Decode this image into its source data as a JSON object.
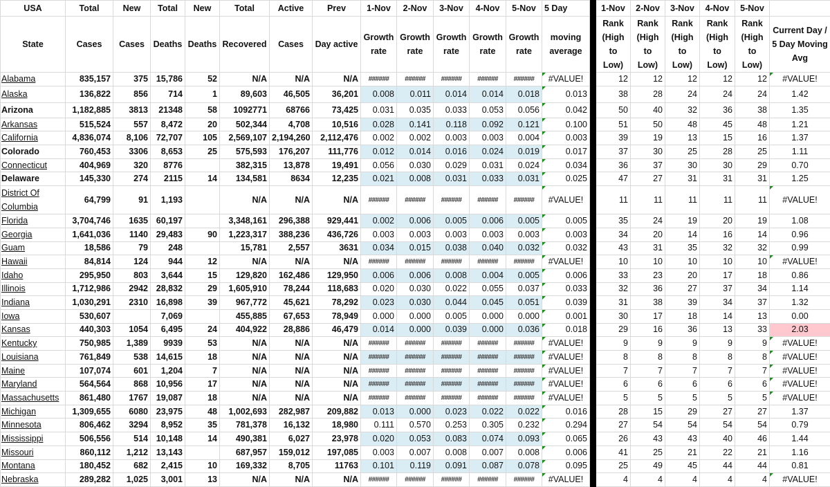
{
  "header_row1": [
    "USA",
    "Total",
    "New",
    "Total",
    "New",
    "Total",
    "Active",
    "Prev",
    "1-Nov",
    "2-Nov",
    "3-Nov",
    "4-Nov",
    "5-Nov",
    "5 Day",
    "",
    "1-Nov",
    "2-Nov",
    "3-Nov",
    "4-Nov",
    "5-Nov",
    ""
  ],
  "header_row2": [
    "State",
    "Cases",
    "Cases",
    "Deaths",
    "Deaths",
    "Recovered",
    "Cases",
    "Day active",
    "Growth rate",
    "Growth rate",
    "Growth rate",
    "Growth rate",
    "Growth rate",
    "moving average",
    "",
    "Rank (High to Low)",
    "Rank (High to Low)",
    "Rank (High to Low)",
    "Rank (High to Low)",
    "Rank (High to Low)",
    "Current Day / 5 Day Moving Avg"
  ],
  "colors": {
    "growth_band": "#dbedf4",
    "highlight": "#ffc7ce",
    "separator": "#000000",
    "error_indicator": "#1e8c1e"
  },
  "rows": [
    {
      "state": "Alabama",
      "link": true,
      "values": [
        "835,157",
        "375",
        "15,786",
        "52",
        "N/A",
        "N/A",
        "N/A"
      ],
      "growth": [
        "######",
        "######",
        "######",
        "######",
        "######"
      ],
      "avg": "#VALUE!",
      "ranks": [
        "12",
        "12",
        "12",
        "12",
        "12"
      ],
      "ratio": "#VALUE!"
    },
    {
      "state": "Alaska",
      "link": true,
      "values": [
        "136,822",
        "856",
        "714",
        "1",
        "89,603",
        "46,505",
        "36,201"
      ],
      "growth": [
        "0.008",
        "0.011",
        "0.014",
        "0.014",
        "0.018"
      ],
      "avg": "0.013",
      "ranks": [
        "38",
        "28",
        "24",
        "24",
        "24"
      ],
      "ratio": "1.42"
    },
    {
      "state": "Arizona",
      "link": false,
      "values": [
        "1,182,885",
        "3813",
        "21348",
        "58",
        "1092771",
        "68766",
        "73,425"
      ],
      "growth": [
        "0.031",
        "0.035",
        "0.033",
        "0.053",
        "0.056"
      ],
      "avg": "0.042",
      "ranks": [
        "50",
        "40",
        "32",
        "36",
        "38"
      ],
      "ratio": "1.35"
    },
    {
      "state": "Arkansas",
      "link": true,
      "values": [
        "515,524",
        "557",
        "8,472",
        "20",
        "502,344",
        "4,708",
        "10,516"
      ],
      "growth": [
        "0.028",
        "0.141",
        "0.118",
        "0.092",
        "0.121"
      ],
      "avg": "0.100",
      "ranks": [
        "51",
        "50",
        "48",
        "45",
        "48"
      ],
      "ratio": "1.21"
    },
    {
      "state": "California",
      "link": true,
      "values": [
        "4,836,074",
        "8,106",
        "72,707",
        "105",
        "2,569,107",
        "2,194,260",
        "2,112,476"
      ],
      "growth": [
        "0.002",
        "0.002",
        "0.003",
        "0.003",
        "0.004"
      ],
      "avg": "0.003",
      "ranks": [
        "39",
        "19",
        "13",
        "15",
        "16"
      ],
      "ratio": "1.37"
    },
    {
      "state": "Colorado",
      "link": false,
      "values": [
        "760,453",
        "3306",
        "8,653",
        "25",
        "575,593",
        "176,207",
        "111,776"
      ],
      "growth": [
        "0.012",
        "0.014",
        "0.016",
        "0.024",
        "0.019"
      ],
      "avg": "0.017",
      "ranks": [
        "37",
        "30",
        "25",
        "28",
        "25"
      ],
      "ratio": "1.11"
    },
    {
      "state": "Connecticut",
      "link": true,
      "values": [
        "404,969",
        "320",
        "8776",
        "",
        "382,315",
        "13,878",
        "19,491"
      ],
      "growth": [
        "0.056",
        "0.030",
        "0.029",
        "0.031",
        "0.024"
      ],
      "avg": "0.034",
      "ranks": [
        "36",
        "37",
        "30",
        "30",
        "29"
      ],
      "ratio": "0.70"
    },
    {
      "state": "Delaware",
      "link": false,
      "values": [
        "145,330",
        "274",
        "2115",
        "14",
        "134,581",
        "8634",
        "12,235"
      ],
      "growth": [
        "0.021",
        "0.008",
        "0.031",
        "0.033",
        "0.031"
      ],
      "avg": "0.025",
      "ranks": [
        "47",
        "27",
        "31",
        "31",
        "31"
      ],
      "ratio": "1.25"
    },
    {
      "state": "District Of Columbia",
      "link": true,
      "values": [
        "64,799",
        "91",
        "1,193",
        "",
        "N/A",
        "N/A",
        "N/A"
      ],
      "growth": [
        "######",
        "######",
        "######",
        "######",
        "######"
      ],
      "avg": "#VALUE!",
      "ranks": [
        "11",
        "11",
        "11",
        "11",
        "11"
      ],
      "ratio": "#VALUE!"
    },
    {
      "state": "Florida",
      "link": true,
      "values": [
        "3,704,746",
        "1635",
        "60,197",
        "",
        "3,348,161",
        "296,388",
        "929,441"
      ],
      "growth": [
        "0.002",
        "0.006",
        "0.005",
        "0.006",
        "0.005"
      ],
      "avg": "0.005",
      "ranks": [
        "35",
        "24",
        "19",
        "20",
        "19"
      ],
      "ratio": "1.08"
    },
    {
      "state": "Georgia",
      "link": true,
      "values": [
        "1,641,036",
        "1140",
        "29,483",
        "90",
        "1,223,317",
        "388,236",
        "436,726"
      ],
      "growth": [
        "0.003",
        "0.003",
        "0.003",
        "0.003",
        "0.003"
      ],
      "avg": "0.003",
      "ranks": [
        "34",
        "20",
        "14",
        "16",
        "14"
      ],
      "ratio": "0.96"
    },
    {
      "state": "Guam",
      "link": true,
      "values": [
        "18,586",
        "79",
        "248",
        "",
        "15,781",
        "2,557",
        "3631"
      ],
      "growth": [
        "0.034",
        "0.015",
        "0.038",
        "0.040",
        "0.032"
      ],
      "avg": "0.032",
      "ranks": [
        "43",
        "31",
        "35",
        "32",
        "32"
      ],
      "ratio": "0.99"
    },
    {
      "state": "Hawaii",
      "link": true,
      "values": [
        "84,814",
        "124",
        "944",
        "12",
        "N/A",
        "N/A",
        "N/A"
      ],
      "growth": [
        "######",
        "######",
        "######",
        "######",
        "######"
      ],
      "avg": "#VALUE!",
      "ranks": [
        "10",
        "10",
        "10",
        "10",
        "10"
      ],
      "ratio": "#VALUE!"
    },
    {
      "state": "Idaho",
      "link": true,
      "values": [
        "295,950",
        "803",
        "3,644",
        "15",
        "129,820",
        "162,486",
        "129,950"
      ],
      "growth": [
        "0.006",
        "0.006",
        "0.008",
        "0.004",
        "0.005"
      ],
      "avg": "0.006",
      "ranks": [
        "33",
        "23",
        "20",
        "17",
        "18"
      ],
      "ratio": "0.86"
    },
    {
      "state": "Illinois",
      "link": true,
      "values": [
        "1,712,986",
        "2942",
        "28,832",
        "29",
        "1,605,910",
        "78,244",
        "118,683"
      ],
      "growth": [
        "0.020",
        "0.030",
        "0.022",
        "0.055",
        "0.037"
      ],
      "avg": "0.033",
      "ranks": [
        "32",
        "36",
        "27",
        "37",
        "34"
      ],
      "ratio": "1.14"
    },
    {
      "state": "Indiana",
      "link": true,
      "values": [
        "1,030,291",
        "2310",
        "16,898",
        "39",
        "967,772",
        "45,621",
        "78,292"
      ],
      "growth": [
        "0.023",
        "0.030",
        "0.044",
        "0.045",
        "0.051"
      ],
      "avg": "0.039",
      "ranks": [
        "31",
        "38",
        "39",
        "34",
        "37"
      ],
      "ratio": "1.32"
    },
    {
      "state": "Iowa",
      "link": true,
      "values": [
        "530,607",
        "",
        "7,069",
        "",
        "455,885",
        "67,653",
        "78,949"
      ],
      "growth": [
        "0.000",
        "0.000",
        "0.005",
        "0.000",
        "0.000"
      ],
      "avg": "0.001",
      "ranks": [
        "30",
        "17",
        "18",
        "14",
        "13"
      ],
      "ratio": "0.00"
    },
    {
      "state": "Kansas",
      "link": true,
      "values": [
        "440,303",
        "1054",
        "6,495",
        "24",
        "404,922",
        "28,886",
        "46,479"
      ],
      "growth": [
        "0.014",
        "0.000",
        "0.039",
        "0.000",
        "0.036"
      ],
      "avg": "0.018",
      "ranks": [
        "29",
        "16",
        "36",
        "13",
        "33"
      ],
      "ratio": "2.03",
      "highlight": true
    },
    {
      "state": "Kentucky",
      "link": true,
      "values": [
        "750,985",
        "1,389",
        "9939",
        "53",
        "N/A",
        "N/A",
        "N/A"
      ],
      "growth": [
        "######",
        "######",
        "######",
        "######",
        "######"
      ],
      "avg": "#VALUE!",
      "ranks": [
        "9",
        "9",
        "9",
        "9",
        "9"
      ],
      "ratio": "#VALUE!"
    },
    {
      "state": "Louisiana",
      "link": true,
      "values": [
        "761,849",
        "538",
        "14,615",
        "18",
        "N/A",
        "N/A",
        "N/A"
      ],
      "growth": [
        "######",
        "######",
        "######",
        "######",
        "######"
      ],
      "avg": "#VALUE!",
      "ranks": [
        "8",
        "8",
        "8",
        "8",
        "8"
      ],
      "ratio": "#VALUE!"
    },
    {
      "state": "Maine",
      "link": true,
      "values": [
        "107,074",
        "601",
        "1,204",
        "7",
        "N/A",
        "N/A",
        "N/A"
      ],
      "growth": [
        "######",
        "######",
        "######",
        "######",
        "######"
      ],
      "avg": "#VALUE!",
      "ranks": [
        "7",
        "7",
        "7",
        "7",
        "7"
      ],
      "ratio": "#VALUE!"
    },
    {
      "state": "Maryland",
      "link": true,
      "values": [
        "564,564",
        "868",
        "10,956",
        "17",
        "N/A",
        "N/A",
        "N/A"
      ],
      "growth": [
        "######",
        "######",
        "######",
        "######",
        "######"
      ],
      "avg": "#VALUE!",
      "ranks": [
        "6",
        "6",
        "6",
        "6",
        "6"
      ],
      "ratio": "#VALUE!"
    },
    {
      "state": "Massachusetts",
      "link": true,
      "values": [
        "861,480",
        "1767",
        "19,087",
        "18",
        "N/A",
        "N/A",
        "N/A"
      ],
      "growth": [
        "######",
        "######",
        "######",
        "######",
        "######"
      ],
      "avg": "#VALUE!",
      "ranks": [
        "5",
        "5",
        "5",
        "5",
        "5"
      ],
      "ratio": "#VALUE!"
    },
    {
      "state": "Michigan",
      "link": true,
      "values": [
        "1,309,655",
        "6080",
        "23,975",
        "48",
        "1,002,693",
        "282,987",
        "209,882"
      ],
      "growth": [
        "0.013",
        "0.000",
        "0.023",
        "0.022",
        "0.022"
      ],
      "avg": "0.016",
      "ranks": [
        "28",
        "15",
        "29",
        "27",
        "27"
      ],
      "ratio": "1.37"
    },
    {
      "state": "Minnesota",
      "link": true,
      "values": [
        "806,462",
        "3294",
        "8,952",
        "35",
        "781,378",
        "16,132",
        "18,980"
      ],
      "growth": [
        "0.111",
        "0.570",
        "0.253",
        "0.305",
        "0.232"
      ],
      "avg": "0.294",
      "ranks": [
        "27",
        "54",
        "54",
        "54",
        "54"
      ],
      "ratio": "0.79"
    },
    {
      "state": "Mississippi",
      "link": true,
      "values": [
        "506,556",
        "514",
        "10,148",
        "14",
        "490,381",
        "6,027",
        "23,978"
      ],
      "growth": [
        "0.020",
        "0.053",
        "0.083",
        "0.074",
        "0.093"
      ],
      "avg": "0.065",
      "ranks": [
        "26",
        "43",
        "43",
        "40",
        "46"
      ],
      "ratio": "1.44"
    },
    {
      "state": "Missouri",
      "link": true,
      "values": [
        "860,112",
        "1,212",
        "13,143",
        "",
        "687,957",
        "159,012",
        "197,085"
      ],
      "growth": [
        "0.003",
        "0.007",
        "0.008",
        "0.007",
        "0.008"
      ],
      "avg": "0.006",
      "ranks": [
        "41",
        "25",
        "21",
        "22",
        "21"
      ],
      "ratio": "1.16"
    },
    {
      "state": "Montana",
      "link": true,
      "values": [
        "180,452",
        "682",
        "2,415",
        "10",
        "169,332",
        "8,705",
        "11763"
      ],
      "growth": [
        "0.101",
        "0.119",
        "0.091",
        "0.087",
        "0.078"
      ],
      "avg": "0.095",
      "ranks": [
        "25",
        "49",
        "45",
        "44",
        "44"
      ],
      "ratio": "0.81"
    },
    {
      "state": "Nebraska",
      "link": true,
      "values": [
        "289,282",
        "1,025",
        "3,001",
        "13",
        "N/A",
        "N/A",
        "N/A"
      ],
      "growth": [
        "######",
        "######",
        "######",
        "######",
        "######"
      ],
      "avg": "#VALUE!",
      "ranks": [
        "4",
        "4",
        "4",
        "4",
        "4"
      ],
      "ratio": "#VALUE!"
    }
  ]
}
